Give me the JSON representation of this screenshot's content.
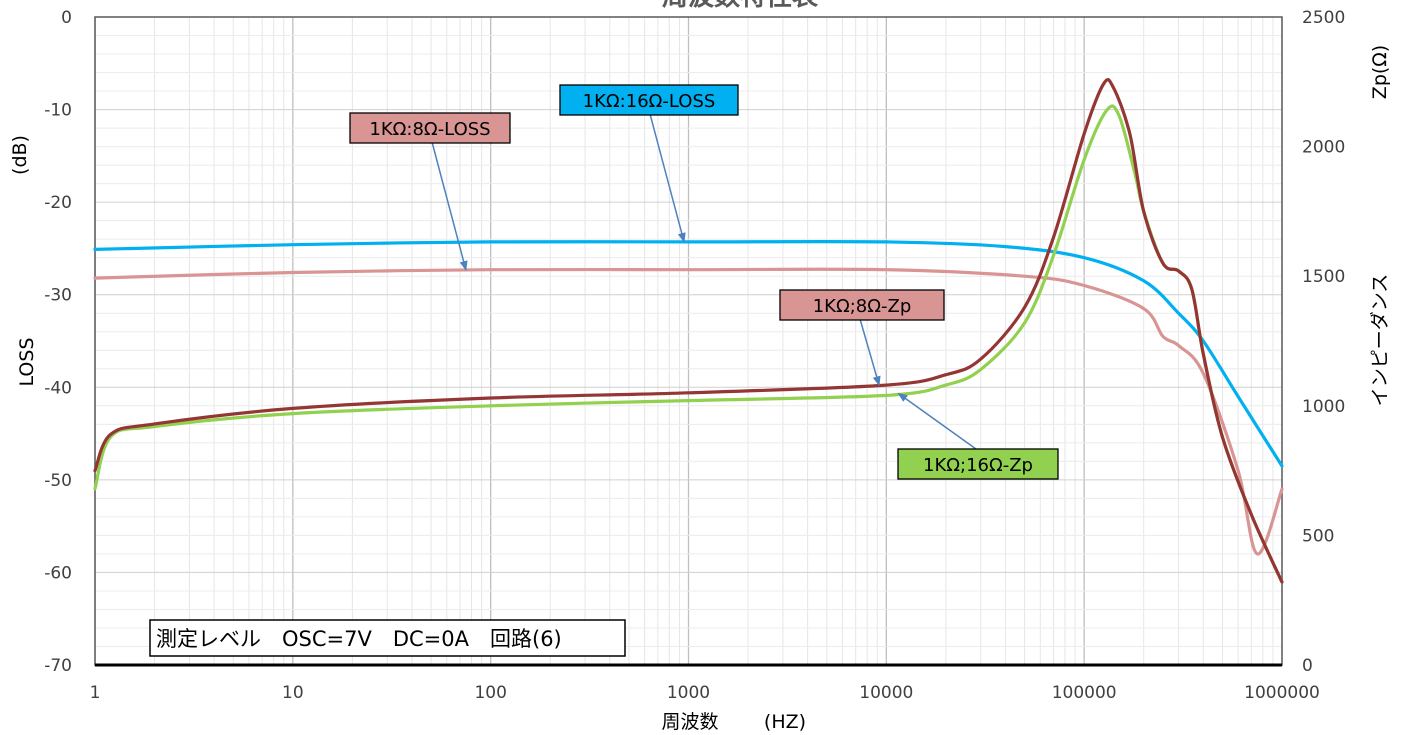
{
  "chart_data": {
    "type": "line",
    "title": "周波数特性表",
    "xlabel": "周波数",
    "xlabel_unit": "(HZ)",
    "x_scale": "log",
    "xlim": [
      1,
      1000000
    ],
    "x_ticks": [
      "1",
      "10",
      "100",
      "1000",
      "10000",
      "100000",
      "1000000"
    ],
    "y_left": {
      "label": "LOSS",
      "unit": "(dB)",
      "lim": [
        -70,
        0
      ],
      "ticks": [
        "0",
        "-10",
        "-20",
        "-30",
        "-40",
        "-50",
        "-60",
        "-70"
      ]
    },
    "y_right": {
      "label": "インピーダンス",
      "unit": "Zp(Ω)",
      "lim": [
        0,
        2500
      ],
      "ticks": [
        "2500",
        "2000",
        "1500",
        "1000",
        "500",
        "0"
      ]
    },
    "grid": true,
    "series": [
      {
        "name": "1KΩ:16Ω-LOSS",
        "axis": "left",
        "color": "#00b0f0",
        "points": [
          [
            1,
            -25.1
          ],
          [
            10,
            -24.6
          ],
          [
            100,
            -24.3
          ],
          [
            1000,
            -24.3
          ],
          [
            10000,
            -24.3
          ],
          [
            40000,
            -24.8
          ],
          [
            100000,
            -26.0
          ],
          [
            200000,
            -28.5
          ],
          [
            300000,
            -32.0
          ],
          [
            400000,
            -35.0
          ],
          [
            600000,
            -41.0
          ],
          [
            1000000,
            -48.5
          ]
        ]
      },
      {
        "name": "1KΩ:8Ω-LOSS",
        "axis": "left",
        "color": "#d99594",
        "points": [
          [
            1,
            -28.2
          ],
          [
            10,
            -27.6
          ],
          [
            100,
            -27.3
          ],
          [
            1000,
            -27.3
          ],
          [
            10000,
            -27.3
          ],
          [
            50000,
            -28.0
          ],
          [
            100000,
            -29.0
          ],
          [
            200000,
            -31.5
          ],
          [
            250000,
            -34.5
          ],
          [
            300000,
            -35.5
          ],
          [
            400000,
            -38.5
          ],
          [
            600000,
            -49.0
          ],
          [
            750000,
            -58.0
          ],
          [
            1000000,
            -51.0
          ]
        ]
      },
      {
        "name": "1KΩ;8Ω-Zp",
        "axis": "right",
        "color": "#943634",
        "points": [
          [
            1,
            750
          ],
          [
            1.2,
            890
          ],
          [
            2,
            930
          ],
          [
            10,
            990
          ],
          [
            100,
            1030
          ],
          [
            1000,
            1050
          ],
          [
            10000,
            1080
          ],
          [
            20000,
            1120
          ],
          [
            30000,
            1180
          ],
          [
            50000,
            1380
          ],
          [
            70000,
            1650
          ],
          [
            100000,
            2050
          ],
          [
            125000,
            2240
          ],
          [
            140000,
            2230
          ],
          [
            170000,
            2050
          ],
          [
            200000,
            1750
          ],
          [
            250000,
            1550
          ],
          [
            300000,
            1520
          ],
          [
            350000,
            1450
          ],
          [
            400000,
            1200
          ],
          [
            500000,
            880
          ],
          [
            700000,
            580
          ],
          [
            1000000,
            320
          ]
        ]
      },
      {
        "name": "1KΩ;16Ω-Zp",
        "axis": "right",
        "color": "#92d050",
        "points": [
          [
            1,
            680
          ],
          [
            1.2,
            880
          ],
          [
            2,
            920
          ],
          [
            10,
            970
          ],
          [
            100,
            1000
          ],
          [
            1000,
            1020
          ],
          [
            10000,
            1040
          ],
          [
            20000,
            1080
          ],
          [
            30000,
            1140
          ],
          [
            50000,
            1320
          ],
          [
            70000,
            1580
          ],
          [
            100000,
            1950
          ],
          [
            130000,
            2140
          ],
          [
            150000,
            2120
          ],
          [
            180000,
            1900
          ],
          [
            200000,
            1750
          ],
          [
            250000,
            1550
          ],
          [
            300000,
            1520
          ],
          [
            350000,
            1450
          ],
          [
            400000,
            1200
          ],
          [
            500000,
            880
          ],
          [
            700000,
            580
          ],
          [
            1000000,
            320
          ]
        ]
      }
    ],
    "annotations": [
      {
        "text": "1KΩ:16Ω-LOSS",
        "bg": "#00b0f0",
        "series": 0,
        "pointer_x": 950
      },
      {
        "text": "1KΩ:8Ω-LOSS",
        "bg": "#d99594",
        "series": 1,
        "pointer_x": 75
      },
      {
        "text": "1KΩ;8Ω-Zp",
        "bg": "#d99594",
        "series": 2,
        "pointer_x": 9200
      },
      {
        "text": "1KΩ;16Ω-Zp",
        "bg": "#92d050",
        "series": 3,
        "pointer_x": 11500
      }
    ],
    "note": "測定レベル　OSC=7V　DC=0A　回路(6)"
  }
}
